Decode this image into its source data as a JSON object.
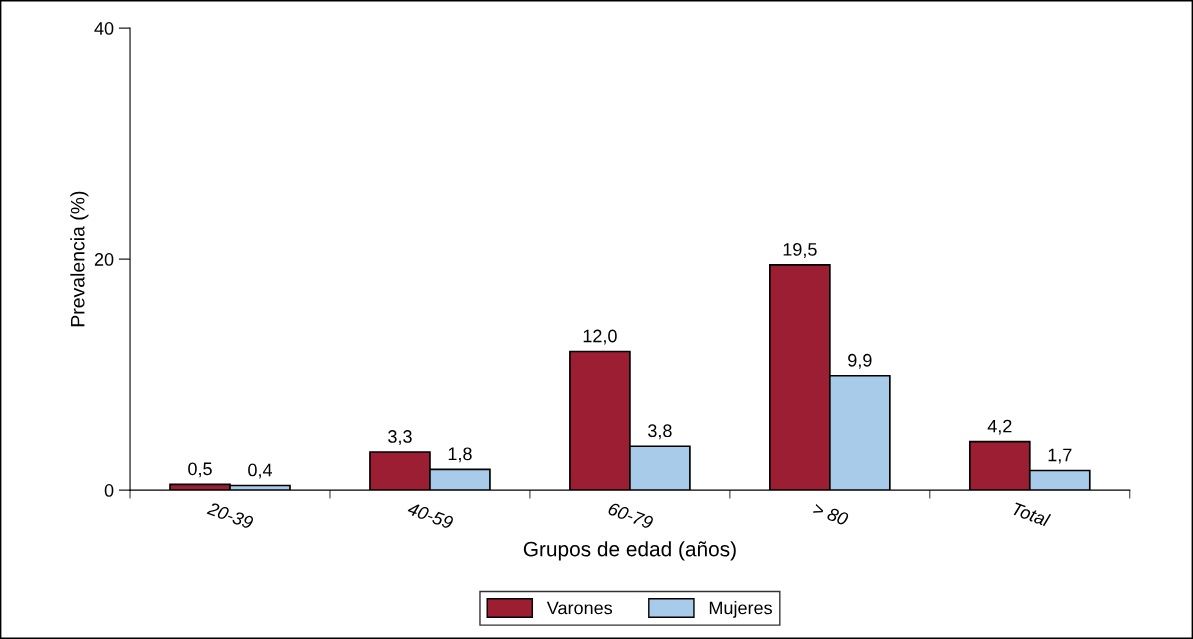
{
  "chart_data": {
    "type": "bar",
    "xlabel": "Grupos de edad (años)",
    "ylabel": "Prevalencia (%)",
    "categories": [
      "20-39",
      "40-59",
      "60-79",
      "> 80",
      "Total"
    ],
    "series": [
      {
        "name": "Varones",
        "color": "#9b1e32",
        "values": [
          0.5,
          3.3,
          12.0,
          19.5,
          4.2
        ],
        "value_labels": [
          "0,5",
          "3,3",
          "12,0",
          "19,5",
          "4,2"
        ]
      },
      {
        "name": "Mujeres",
        "color": "#a9cbea",
        "values": [
          0.4,
          1.8,
          3.8,
          9.9,
          1.7
        ],
        "value_labels": [
          "0,4",
          "1,8",
          "3,8",
          "9,9",
          "1,7"
        ]
      }
    ],
    "ylim": [
      0,
      40
    ],
    "yticks": [
      0,
      20,
      40
    ],
    "grid": false,
    "legend": "bottom"
  }
}
